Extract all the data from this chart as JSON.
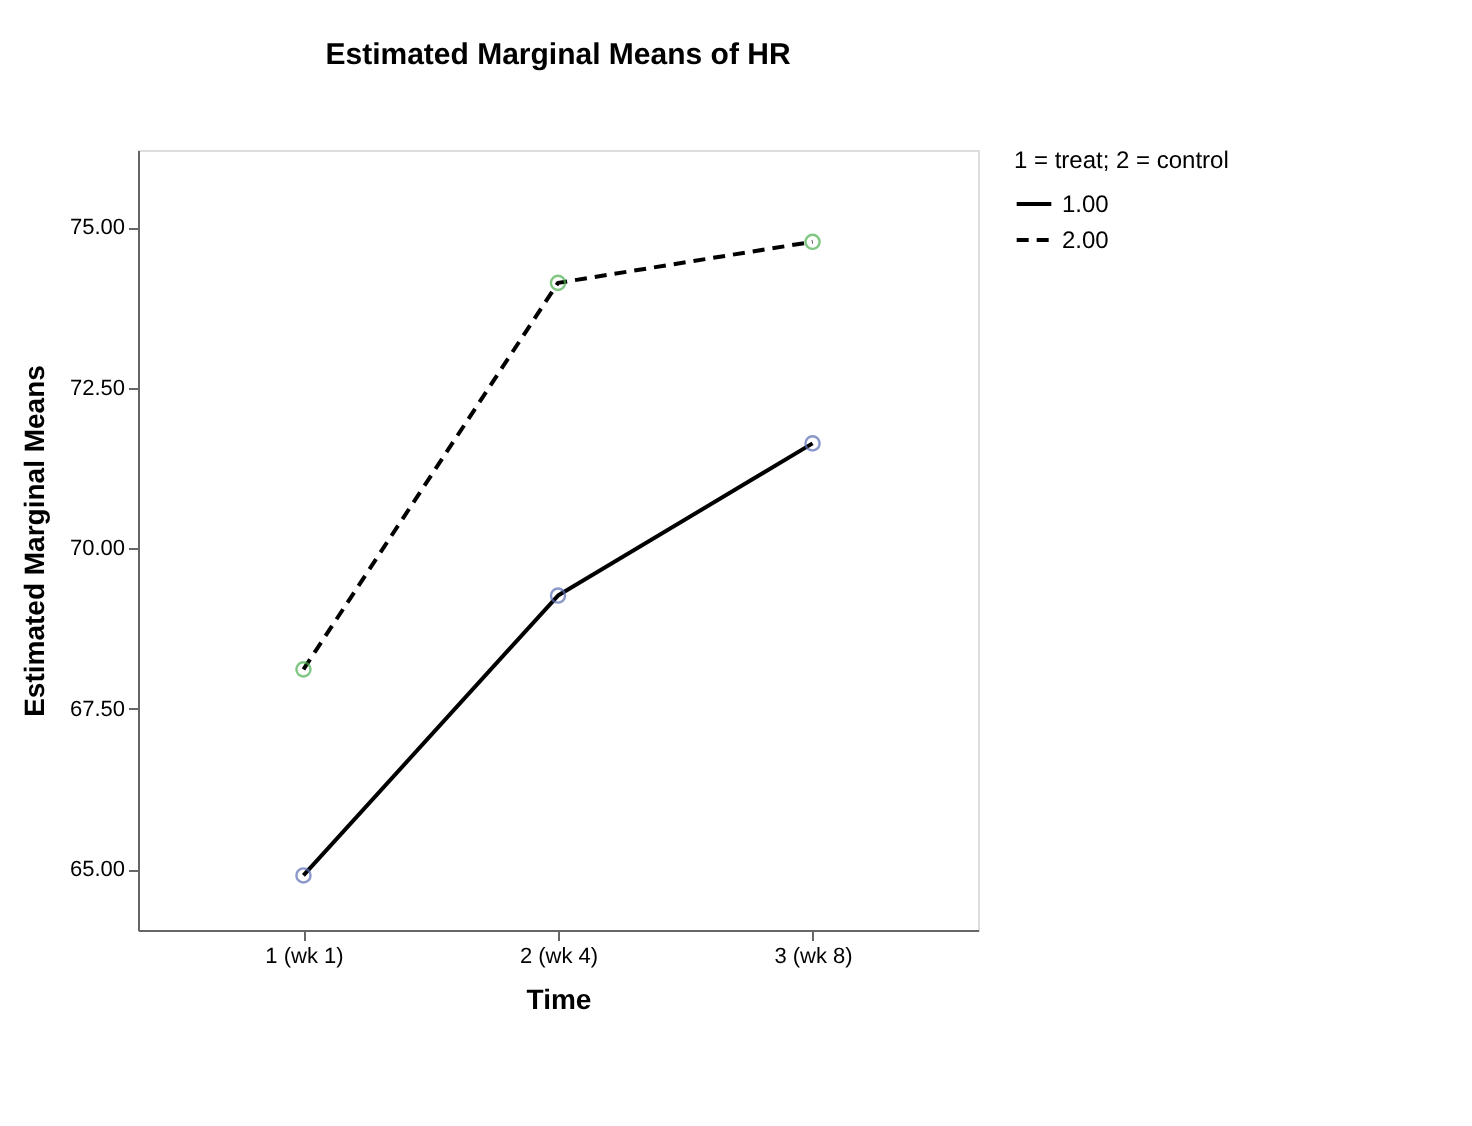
{
  "chart_data": {
    "type": "line",
    "title": "Estimated Marginal Means of HR",
    "xlabel": "Time",
    "ylabel": "Estimated Marginal Means",
    "legend_title": "1 = treat; 2 = control",
    "categories": [
      "1 (wk 1)",
      "2 (wk 4)",
      "3 (wk 8)"
    ],
    "series": [
      {
        "name": "1.00",
        "color": "#000000",
        "colors": [
          "#5a6db5",
          "#5a6db5",
          "#5a6db5"
        ],
        "line_style": "solid",
        "values": [
          64.9,
          69.26,
          71.63
        ]
      },
      {
        "name": "2.00",
        "color": "#000000",
        "colors": [
          "#4cb050",
          "#4cb050",
          "#4cb050"
        ],
        "line_style": "dashed",
        "values": [
          68.11,
          74.13,
          74.77
        ]
      }
    ],
    "ylim": [
      64.05,
      76.2
    ],
    "yticks": [
      {
        "value": 65,
        "label": "65.00"
      },
      {
        "value": 67.5,
        "label": "67.50"
      },
      {
        "value": 70,
        "label": "70.00"
      },
      {
        "value": 72.5,
        "label": "72.50"
      },
      {
        "value": 75,
        "label": "75.00"
      }
    ],
    "marker": "circle",
    "grid": false,
    "legend": "top right"
  }
}
